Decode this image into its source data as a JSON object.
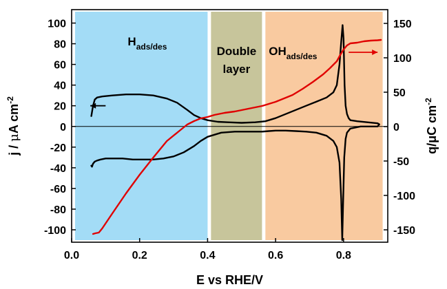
{
  "chart_data": {
    "type": "line",
    "xlabel": "E vs RHE/V",
    "ylabel_left": {
      "main": "j / ",
      "mu": "μ",
      "unit": "A cm",
      "sup": "-2"
    },
    "ylabel_right": {
      "main": "q/μC cm",
      "sup": "-2"
    },
    "xlim": [
      0.0,
      0.93
    ],
    "ylim_left": [
      -112,
      113
    ],
    "ylim_right": [
      -168,
      170
    ],
    "x_ticks": [
      "0.0",
      "0.2",
      "0.4",
      "0.6",
      "0.8"
    ],
    "x_tick_values": [
      0.0,
      0.2,
      0.4,
      0.6,
      0.8
    ],
    "y_left_ticks": [
      "100",
      "80",
      "60",
      "40",
      "20",
      "0",
      "-20",
      "-40",
      "-60",
      "-80",
      "-100"
    ],
    "y_left_tick_values": [
      100,
      80,
      60,
      40,
      20,
      0,
      -20,
      -40,
      -60,
      -80,
      -100
    ],
    "y_right_ticks": [
      "150",
      "100",
      "50",
      "0",
      "-50",
      "-100",
      "-150"
    ],
    "y_right_tick_values": [
      150,
      100,
      50,
      0,
      -50,
      -100,
      -150
    ],
    "regions": [
      {
        "label": "H",
        "sub": "ads/des",
        "x_range": [
          0.01,
          0.4
        ],
        "color": "#a3dcf6"
      },
      {
        "label_lines": [
          "Double",
          "layer"
        ],
        "x_range": [
          0.41,
          0.56
        ],
        "color": "#c7c59b"
      },
      {
        "label": "OH",
        "sub": "ads/des",
        "x_range": [
          0.57,
          0.915
        ],
        "color": "#f9caa0"
      }
    ],
    "series": [
      {
        "axis": "left",
        "color": "#000000",
        "x": [
          0.058,
          0.063,
          0.068,
          0.075,
          0.09,
          0.12,
          0.16,
          0.2,
          0.24,
          0.28,
          0.31,
          0.34,
          0.36,
          0.38,
          0.4,
          0.43,
          0.46,
          0.5,
          0.54,
          0.57,
          0.6,
          0.63,
          0.66,
          0.69,
          0.72,
          0.75,
          0.77,
          0.78,
          0.788,
          0.793,
          0.797,
          0.8,
          0.803,
          0.806,
          0.81,
          0.815,
          0.82,
          0.84,
          0.87,
          0.9,
          0.905,
          0.9,
          0.88,
          0.85,
          0.82,
          0.81,
          0.806,
          0.802,
          0.799,
          0.796,
          0.793,
          0.788,
          0.78,
          0.77,
          0.75,
          0.72,
          0.69,
          0.66,
          0.63,
          0.6,
          0.58,
          0.56,
          0.52,
          0.48,
          0.44,
          0.42,
          0.4,
          0.38,
          0.36,
          0.33,
          0.3,
          0.27,
          0.24,
          0.21,
          0.18,
          0.15,
          0.12,
          0.1,
          0.085,
          0.075,
          0.068,
          0.063,
          0.06,
          0.058
        ],
        "y": [
          10,
          20,
          26,
          28,
          29,
          30,
          31,
          31,
          30,
          27,
          23,
          16,
          11,
          8,
          6,
          4.5,
          4,
          3.5,
          4,
          5,
          8,
          12,
          16,
          20,
          24,
          28,
          33,
          40,
          60,
          82,
          98,
          85,
          40,
          20,
          12,
          8,
          6,
          5,
          4,
          3,
          2,
          0,
          0,
          0,
          -2,
          -6,
          -12,
          -30,
          -70,
          -110,
          -70,
          -35,
          -20,
          -14,
          -9,
          -6,
          -5,
          -4.5,
          -4,
          -4,
          -4.5,
          -5,
          -5,
          -5,
          -6,
          -8,
          -10,
          -14,
          -19,
          -25,
          -29,
          -31,
          -32,
          -32,
          -32,
          -31,
          -31,
          -31,
          -32,
          -33,
          -34,
          -36,
          -39,
          -38
        ]
      },
      {
        "axis": "right",
        "color": "#e00000",
        "x": [
          0.063,
          0.07,
          0.08,
          0.09,
          0.12,
          0.16,
          0.2,
          0.24,
          0.28,
          0.32,
          0.34,
          0.36,
          0.38,
          0.4,
          0.42,
          0.45,
          0.48,
          0.5,
          0.52,
          0.54,
          0.56,
          0.58,
          0.6,
          0.62,
          0.65,
          0.68,
          0.71,
          0.74,
          0.76,
          0.78,
          0.79,
          0.8,
          0.81,
          0.82,
          0.84,
          0.86,
          0.88,
          0.9,
          0.91
        ],
        "y": [
          -156,
          -155,
          -154,
          -148,
          -126,
          -97,
          -70,
          -45,
          -21,
          -5,
          3,
          8,
          12,
          14,
          17,
          20,
          22,
          24,
          26,
          28,
          30,
          33,
          36,
          40,
          46,
          55,
          65,
          76,
          85,
          95,
          104,
          112,
          118,
          121,
          122,
          124,
          125,
          125.5,
          126
        ]
      }
    ],
    "annotations": [
      {
        "type": "arrow",
        "direction": "left",
        "color": "#000000",
        "axis": "left",
        "x_from": 0.1,
        "x_to": 0.055,
        "y": 20
      },
      {
        "type": "arrow",
        "direction": "right",
        "color": "#e00000",
        "axis": "right",
        "x_from": 0.815,
        "x_to": 0.9,
        "y": 108
      }
    ],
    "zero_line": {
      "axis": "left",
      "y": 0,
      "color": "#000000"
    },
    "grid": false,
    "legend": "none"
  }
}
